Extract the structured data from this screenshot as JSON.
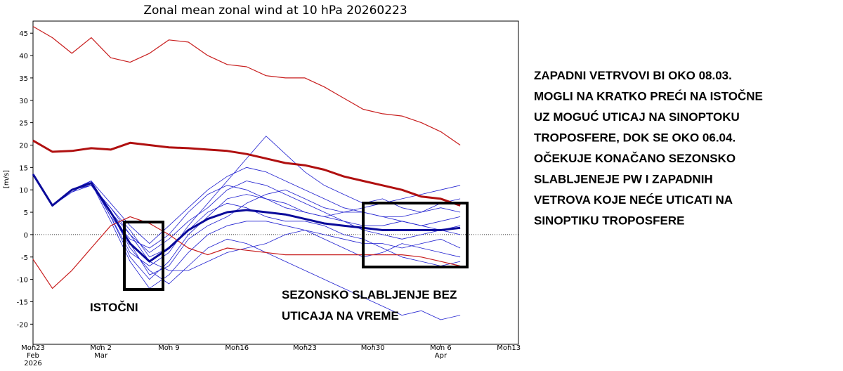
{
  "chart_data": {
    "type": "line",
    "title": "Zonal mean zonal wind at 10 hPa 20260223",
    "y_label": "[m/s]",
    "x": [
      "2026-02-23",
      "2026-02-25",
      "2026-02-27",
      "2026-03-01",
      "2026-03-03",
      "2026-03-05",
      "2026-03-07",
      "2026-03-09",
      "2026-03-11",
      "2026-03-13",
      "2026-03-15",
      "2026-03-17",
      "2026-03-19",
      "2026-03-21",
      "2026-03-23",
      "2026-03-25",
      "2026-03-27",
      "2026-03-29",
      "2026-03-31",
      "2026-04-02",
      "2026-04-04",
      "2026-04-06",
      "2026-04-08"
    ],
    "xlim": [
      "2026-02-23",
      "2026-04-14"
    ],
    "xticks": [
      {
        "value": "2026-02-23",
        "label": "Mon23"
      },
      {
        "value": "2026-03-02",
        "label": "Mon 2"
      },
      {
        "value": "2026-03-09",
        "label": "Mon 9"
      },
      {
        "value": "2026-03-16",
        "label": "Mon16"
      },
      {
        "value": "2026-03-23",
        "label": "Mon23"
      },
      {
        "value": "2026-03-30",
        "label": "Mon30"
      },
      {
        "value": "2026-04-06",
        "label": "Mon 6"
      },
      {
        "value": "2026-04-13",
        "label": "Mon13"
      }
    ],
    "x_sublabels": [
      {
        "value": "2026-02-23",
        "label": "Feb"
      },
      {
        "value": "2026-03-02",
        "label": "Mar"
      },
      {
        "value": "2026-04-06",
        "label": "Apr"
      }
    ],
    "x_year_label": {
      "value": "2026-02-23",
      "label": "2026"
    },
    "ylim": [
      -24.5,
      47.7
    ],
    "yticks": [
      -20,
      -15,
      -10,
      -5,
      0,
      5,
      10,
      15,
      20,
      25,
      30,
      35,
      40,
      45
    ],
    "series": [
      {
        "color": "#2020d0",
        "width": 0.8,
        "values": [
          13.5,
          6.5,
          10,
          12,
          4,
          -5,
          -10,
          -6,
          0,
          4,
          8,
          9,
          8,
          7,
          5,
          4,
          3,
          2,
          2,
          3,
          2,
          1,
          2
        ]
      },
      {
        "color": "#2020d0",
        "width": 0.8,
        "values": [
          13.5,
          6.5,
          10,
          11,
          6,
          0,
          -4,
          -1,
          3,
          6,
          10,
          12,
          11,
          9,
          7,
          5,
          3,
          1,
          0,
          -1,
          0,
          1,
          0
        ]
      },
      {
        "color": "#2020d0",
        "width": 0.8,
        "values": [
          13.5,
          6.5,
          10,
          11.5,
          3,
          -6,
          -12,
          -9,
          -4,
          0,
          2,
          3,
          3,
          2,
          1,
          0,
          -1,
          -2,
          -2,
          -3,
          -2,
          -1,
          -3
        ]
      },
      {
        "color": "#2020d0",
        "width": 0.8,
        "values": [
          13.5,
          6.5,
          9.5,
          12,
          7,
          2,
          -2,
          2,
          6,
          10,
          13,
          15,
          14,
          12,
          10,
          8,
          6,
          5,
          4,
          4,
          5,
          6,
          5
        ]
      },
      {
        "color": "#2020d0",
        "width": 0.8,
        "values": [
          13.5,
          6.5,
          10,
          11,
          5,
          -3,
          -8,
          -11,
          -7,
          -3,
          -1,
          -2,
          -4,
          -6,
          -8,
          -10,
          -12,
          -14,
          -16,
          -18,
          -17,
          -19,
          -18
        ]
      },
      {
        "color": "#2020d0",
        "width": 0.8,
        "values": [
          13.5,
          6.5,
          10,
          12,
          4,
          -1,
          -3,
          0,
          5,
          9,
          11,
          10,
          8,
          6,
          5,
          4,
          5,
          6,
          7,
          8,
          9,
          10,
          11
        ]
      },
      {
        "color": "#2020d0",
        "width": 0.8,
        "values": [
          13.5,
          6.5,
          9.5,
          11,
          6,
          1,
          -5,
          -3,
          1,
          5,
          7,
          6,
          4,
          3,
          3,
          2,
          0,
          -1,
          -3,
          -5,
          -6,
          -7,
          -6
        ]
      },
      {
        "color": "#2020d0",
        "width": 0.8,
        "values": [
          13.5,
          6.5,
          10,
          12,
          5,
          -2,
          -9,
          -7,
          -1,
          2,
          4,
          7,
          9,
          10,
          8,
          6,
          5,
          5,
          4,
          3,
          2,
          3,
          4
        ]
      },
      {
        "color": "#2020d0",
        "width": 0.8,
        "values": [
          13.5,
          6.5,
          10,
          11.5,
          4,
          -4,
          -7,
          -4,
          2,
          7,
          12,
          17,
          22,
          18,
          14,
          11,
          9,
          7,
          8,
          6,
          5,
          7,
          8
        ]
      },
      {
        "color": "#2020d0",
        "width": 0.8,
        "values": [
          13.5,
          6.5,
          10,
          11,
          5,
          0,
          -6,
          -8,
          -8,
          -6,
          -4,
          -3,
          -2,
          0,
          1,
          -1,
          -3,
          -5,
          -4,
          -2,
          -3,
          -4,
          -5
        ]
      },
      {
        "color": "#c81e1e",
        "width": 1.2,
        "values": [
          46.5,
          44,
          40.5,
          44,
          39.5,
          38.5,
          40.5,
          43.5,
          43,
          40,
          38,
          37.5,
          35.5,
          35,
          35,
          33,
          30.5,
          28,
          27,
          26.5,
          25,
          23,
          20
        ]
      },
      {
        "color": "#c81e1e",
        "width": 1.2,
        "values": [
          -5.5,
          -12,
          -8,
          -3,
          2,
          4,
          2.5,
          0,
          -3,
          -4.5,
          -3,
          -3.5,
          -4,
          -4.5,
          -4.5,
          -4.5,
          -4.5,
          -4.5,
          -4.5,
          -4.5,
          -5,
          -6,
          -7
        ]
      },
      {
        "color": "#b01010",
        "width": 3,
        "values": [
          21,
          18.5,
          18.7,
          19.3,
          19,
          20.5,
          20,
          19.5,
          19.3,
          19,
          18.7,
          18,
          17,
          16,
          15.5,
          14.5,
          13,
          12,
          11,
          10,
          8.5,
          8,
          6.5
        ]
      },
      {
        "color": "#0a0a9a",
        "width": 3,
        "values": [
          13.5,
          6.5,
          10,
          11.5,
          5,
          -2,
          -6,
          -3,
          1,
          3.5,
          5,
          5.5,
          5,
          4.5,
          3.5,
          2.5,
          2,
          1.5,
          1,
          1,
          1,
          1,
          1.5
        ]
      }
    ],
    "annotations": [
      "ISTOČNI",
      "SEZONSKO SLABLJENJE BEZ",
      "UTICAJA NA VREME"
    ],
    "side_text": [
      "ZAPADNI VETRVOVI BI OKO 08.03.",
      "MOGLI NA KRATKO PREĆI NA ISTOČNE",
      "UZ MOGUĆ UTICAJ NA SINOPTOKU",
      "TROPOSFERE, DOK SE OKO 06.04.",
      "OČEKUJE KONAČANO SEZONSKO",
      "SLABLJENEJE PW I ZAPADNIH",
      "VETROVA KOJE NEĆE UTICATI NA",
      "SINOPTIKU TROPOSFERE"
    ]
  }
}
